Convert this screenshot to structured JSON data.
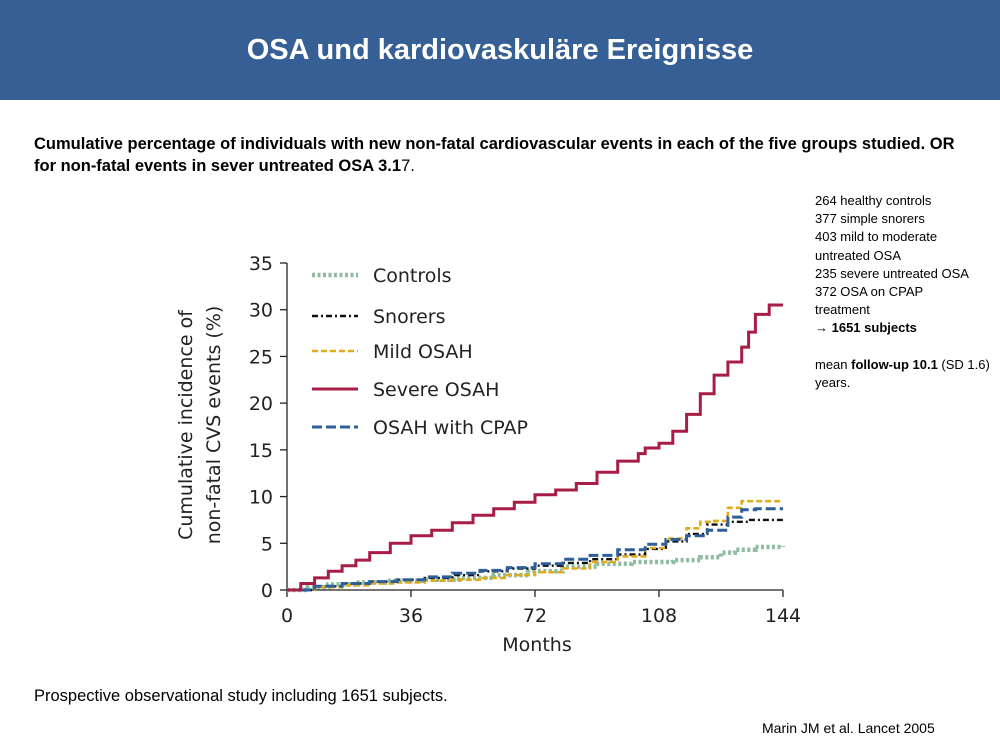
{
  "header": {
    "title": "OSA und kardiovaskuläre Ereignisse"
  },
  "subtitle": {
    "bold_part": "Cumulative percentage of individuals with new non-fatal cardiovascular events in each of the five groups studied. OR for non-fatal events in sever untreated OSA 3.1",
    "normal_part": "7."
  },
  "sidenote": {
    "lines": [
      "264 healthy controls",
      "377 simple snorers",
      "403 mild to moderate",
      "untreated OSA",
      "235 severe untreated OSA",
      "372 OSA on CPAP",
      "treatment"
    ],
    "total_label": "→ 1651 subjects",
    "followup_prefix": "mean ",
    "followup_bold": "follow-up 10.1",
    "followup_rest": " (SD 1.6) years."
  },
  "footer_note": "Prospective observational study including 1651 subjects.",
  "citation": "Marin JM et al. Lancet 2005",
  "chart_data": {
    "type": "line",
    "xlabel": "Months",
    "ylabel_line1": "Cumulative incidence of",
    "ylabel_line2": "non-fatal CVS events (%)",
    "xlim": [
      0,
      144
    ],
    "ylim": [
      0,
      35
    ],
    "xticks": [
      0,
      36,
      72,
      108,
      144
    ],
    "yticks": [
      0,
      5,
      10,
      15,
      20,
      25,
      30,
      35
    ],
    "grid": false,
    "legend_position": "top-left",
    "series": [
      {
        "name": "Controls",
        "color": "#8fbba1",
        "dash": "dotted",
        "x": [
          0,
          6,
          12,
          20,
          30,
          40,
          50,
          60,
          70,
          80,
          90,
          100,
          108,
          112,
          120,
          126,
          130,
          136,
          144
        ],
        "y": [
          0,
          0.3,
          0.6,
          0.8,
          1.0,
          1.1,
          1.3,
          1.6,
          2.0,
          2.5,
          2.8,
          3.0,
          3.0,
          3.2,
          3.5,
          4.0,
          4.3,
          4.6,
          4.7
        ]
      },
      {
        "name": "Snorers",
        "color": "#111111",
        "dash": "dashdot",
        "x": [
          0,
          8,
          16,
          24,
          32,
          40,
          48,
          56,
          64,
          72,
          80,
          88,
          96,
          104,
          110,
          116,
          122,
          128,
          134,
          144
        ],
        "y": [
          0,
          0.4,
          0.7,
          0.9,
          1.1,
          1.3,
          1.6,
          2.0,
          2.3,
          2.6,
          2.9,
          3.3,
          3.8,
          4.4,
          5.2,
          6.0,
          7.0,
          7.3,
          7.5,
          7.5
        ]
      },
      {
        "name": "Mild OSAH",
        "color": "#e0ac1e",
        "dash": "dashed",
        "x": [
          0,
          8,
          16,
          24,
          32,
          40,
          48,
          56,
          64,
          72,
          80,
          88,
          96,
          104,
          110,
          116,
          120,
          124,
          128,
          132,
          144
        ],
        "y": [
          0,
          0.3,
          0.5,
          0.7,
          0.8,
          1.0,
          1.1,
          1.3,
          1.6,
          1.9,
          2.3,
          3.0,
          3.6,
          4.5,
          5.5,
          6.6,
          7.3,
          7.4,
          8.8,
          9.5,
          9.5
        ]
      },
      {
        "name": "Severe OSAH",
        "color": "#a81d45",
        "dash": "solid",
        "x": [
          0,
          4,
          8,
          12,
          16,
          20,
          24,
          30,
          36,
          42,
          48,
          54,
          60,
          66,
          72,
          78,
          84,
          90,
          96,
          102,
          104,
          108,
          112,
          116,
          120,
          124,
          128,
          132,
          134,
          136,
          140,
          144
        ],
        "y": [
          0,
          0.7,
          1.3,
          2.0,
          2.6,
          3.2,
          4.0,
          5.0,
          5.8,
          6.4,
          7.2,
          8.0,
          8.7,
          9.4,
          10.2,
          10.7,
          11.4,
          12.6,
          13.8,
          14.6,
          15.2,
          15.7,
          17.0,
          18.8,
          21.0,
          23.0,
          24.4,
          26.0,
          27.6,
          29.5,
          30.5,
          30.5
        ]
      },
      {
        "name": "OSAH with CPAP",
        "color": "#2f5f98",
        "dash": "longdash",
        "x": [
          0,
          8,
          16,
          24,
          32,
          40,
          48,
          56,
          64,
          72,
          80,
          88,
          96,
          104,
          110,
          116,
          122,
          128,
          132,
          136,
          144
        ],
        "y": [
          0,
          0.4,
          0.7,
          0.9,
          1.1,
          1.4,
          1.8,
          2.1,
          2.4,
          2.8,
          3.3,
          3.7,
          4.3,
          4.9,
          5.4,
          5.8,
          6.4,
          7.8,
          8.6,
          8.7,
          8.7
        ]
      }
    ]
  }
}
